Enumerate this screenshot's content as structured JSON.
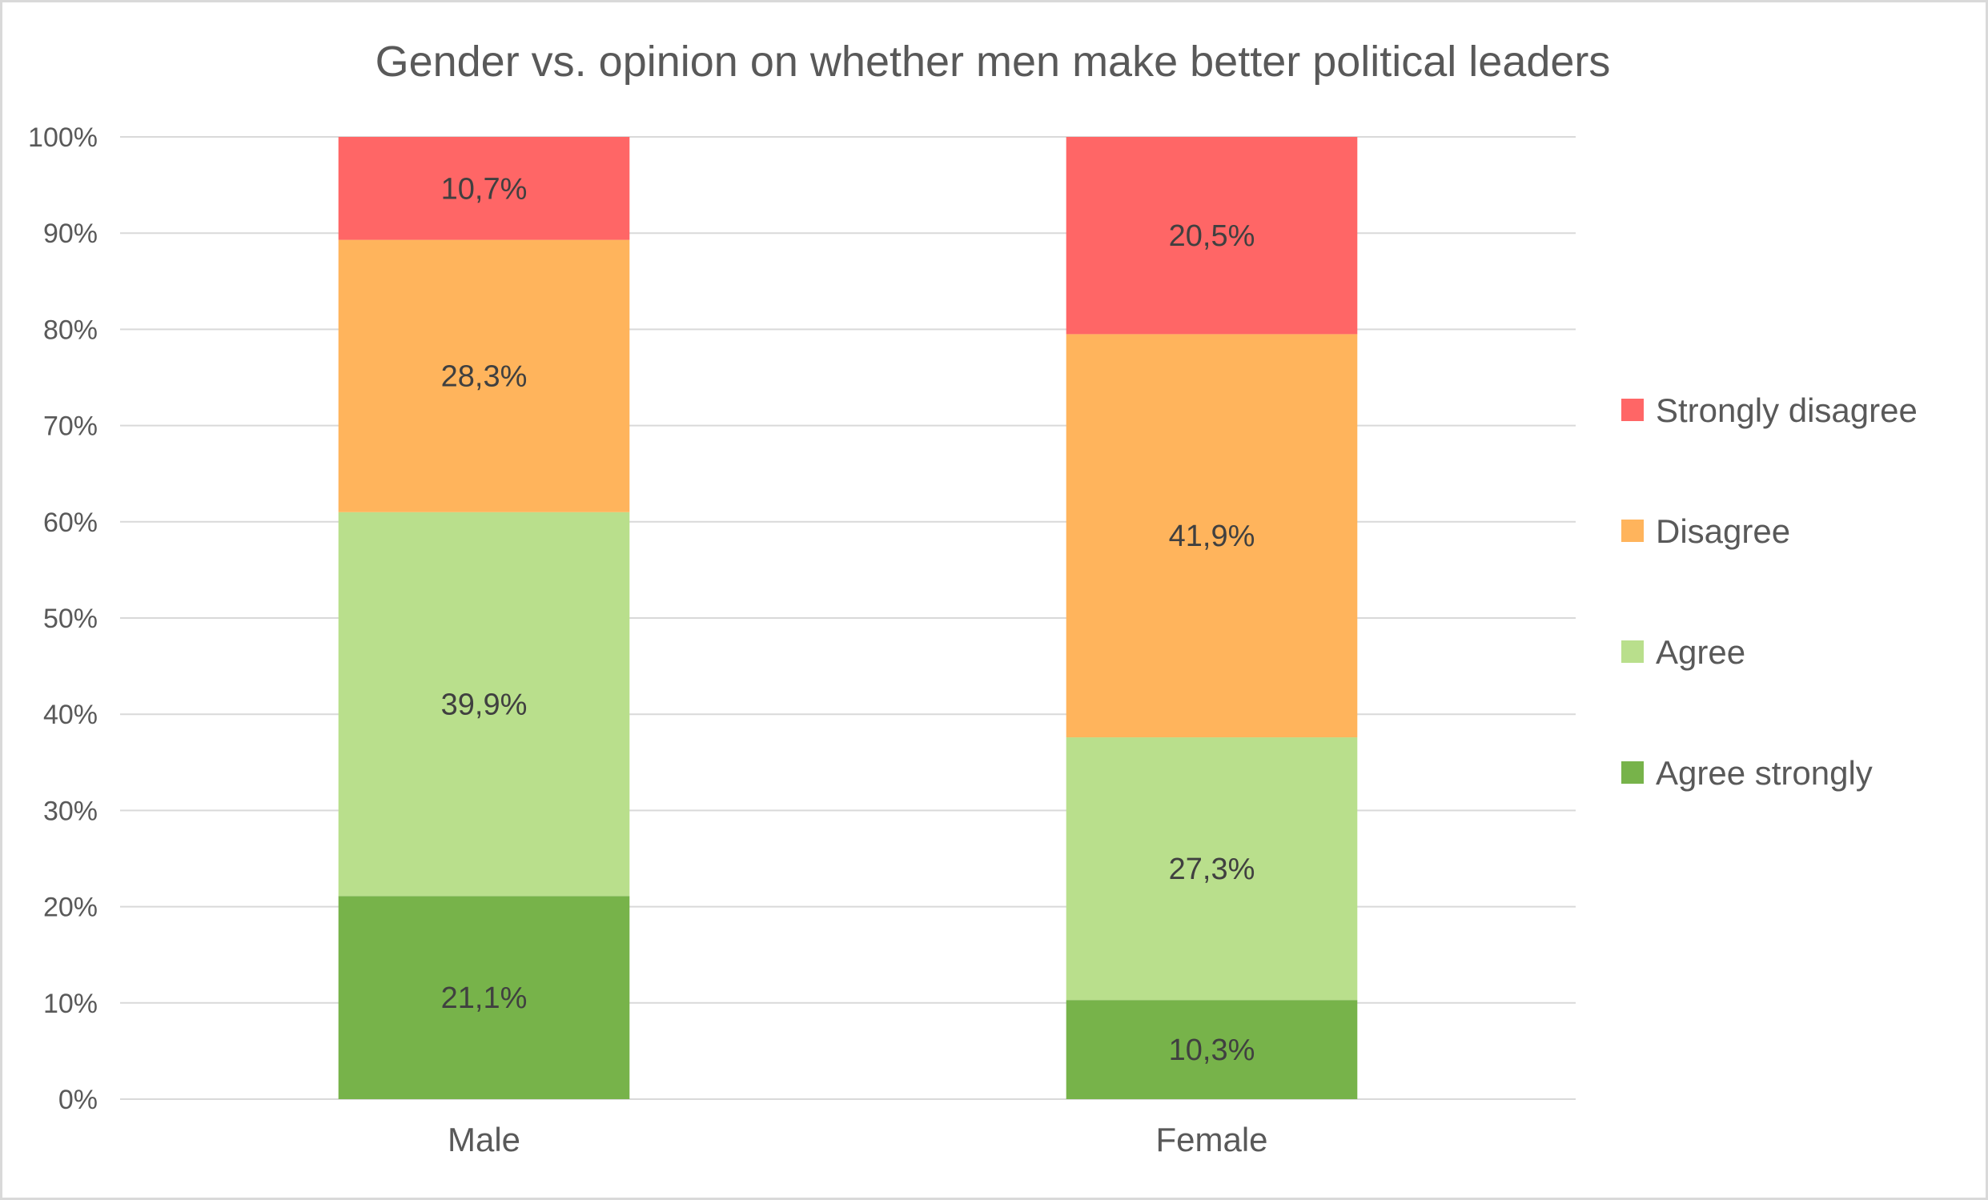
{
  "chart_data": {
    "type": "bar",
    "stacked": true,
    "title": "Gender vs. opinion on whether men make better political leaders",
    "xlabel": "",
    "ylabel": "",
    "ylim": [
      0,
      100
    ],
    "y_ticks": [
      "0%",
      "10%",
      "20%",
      "30%",
      "40%",
      "50%",
      "60%",
      "70%",
      "80%",
      "90%",
      "100%"
    ],
    "grid": true,
    "legend_position": "right",
    "categories": [
      "Male",
      "Female"
    ],
    "series": [
      {
        "name": "Agree strongly",
        "color": "#77b34a",
        "values": [
          21.1,
          10.3
        ],
        "labels": [
          "21,1%",
          "10,3%"
        ]
      },
      {
        "name": "Agree",
        "color": "#b9df8c",
        "values": [
          39.9,
          27.3
        ],
        "labels": [
          "39,9%",
          "27,3%"
        ]
      },
      {
        "name": "Disagree",
        "color": "#ffb45c",
        "values": [
          28.3,
          41.9
        ],
        "labels": [
          "28,3%",
          "41,9%"
        ]
      },
      {
        "name": "Strongly disagree",
        "color": "#ff6666",
        "values": [
          10.7,
          20.5
        ],
        "labels": [
          "10,7%",
          "20,5%"
        ]
      }
    ],
    "legend_order": [
      "Strongly disagree",
      "Disagree",
      "Agree",
      "Agree strongly"
    ]
  }
}
